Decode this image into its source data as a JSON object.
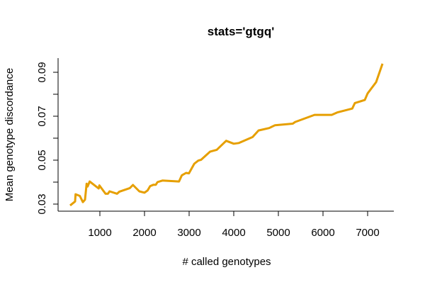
{
  "chart_data": {
    "type": "line",
    "title": "stats='gtgq'",
    "xlabel": "# called genotypes",
    "ylabel": "Mean genotype discordance",
    "xlim": [
      0,
      7500
    ],
    "ylim": [
      0.03,
      0.09
    ],
    "x_ticks": [
      1000,
      2000,
      3000,
      4000,
      5000,
      6000,
      7000
    ],
    "x_tick_labels": [
      "1000",
      "2000",
      "3000",
      "4000",
      "5000",
      "6000",
      "7000"
    ],
    "y_ticks": [
      0.03,
      0.04,
      0.05,
      0.06,
      0.07,
      0.08,
      0.09
    ],
    "y_tick_labels": [
      "0.03",
      "",
      "0.05",
      "",
      "0.07",
      "",
      "0.09"
    ],
    "grid": false,
    "colors": {
      "line": "#E69F00",
      "axis": "#000000"
    },
    "series": [
      {
        "x": [
          333,
          444,
          455,
          550,
          619,
          667,
          703,
          725,
          772,
          973,
          989,
          1127,
          1180,
          1217,
          1386,
          1434,
          1672,
          1741,
          1884,
          2000,
          2069,
          2127,
          2201,
          2254,
          2291,
          2402,
          2773,
          2836,
          2931,
          2995,
          3116,
          3206,
          3270,
          3471,
          3619,
          3830,
          4000,
          4116,
          4423,
          4556,
          4794,
          4926,
          5322,
          5376,
          5810,
          6196,
          6317,
          6656,
          6714,
          6937,
          7000,
          7190,
          7333
        ],
        "y": [
          0.0294,
          0.0312,
          0.0345,
          0.0337,
          0.0309,
          0.032,
          0.0393,
          0.038,
          0.0403,
          0.0371,
          0.0385,
          0.0347,
          0.0347,
          0.0358,
          0.0347,
          0.0356,
          0.0373,
          0.0387,
          0.0358,
          0.0352,
          0.0362,
          0.0382,
          0.0388,
          0.0388,
          0.04,
          0.0407,
          0.0403,
          0.0431,
          0.0442,
          0.044,
          0.0484,
          0.0498,
          0.0502,
          0.0539,
          0.0547,
          0.0588,
          0.0575,
          0.0578,
          0.0605,
          0.0635,
          0.0646,
          0.0659,
          0.0666,
          0.0674,
          0.0706,
          0.0706,
          0.0717,
          0.0735,
          0.076,
          0.0774,
          0.0804,
          0.0855,
          0.0939
        ]
      }
    ]
  }
}
